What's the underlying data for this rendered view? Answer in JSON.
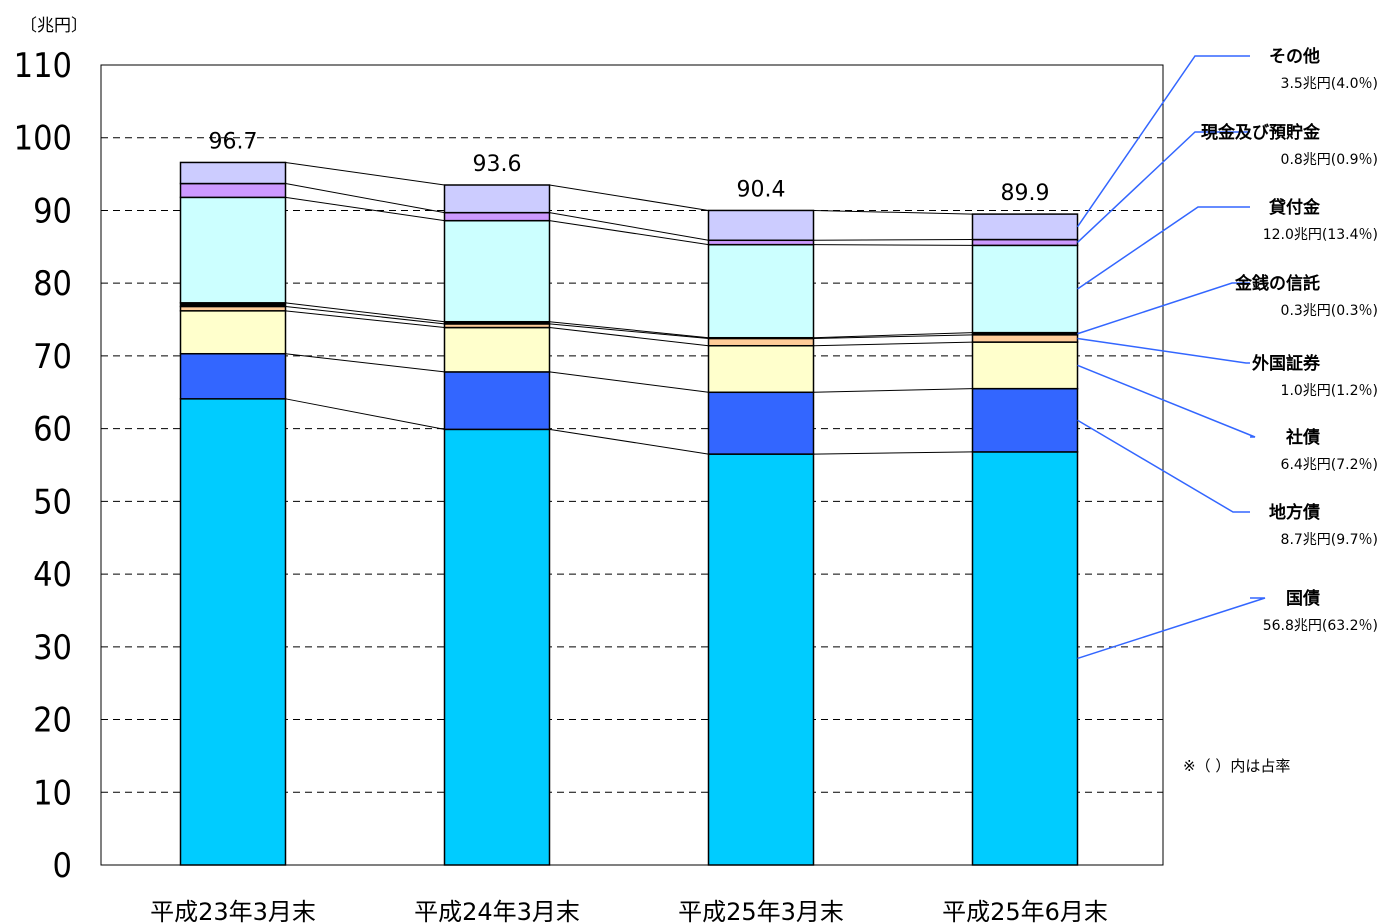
{
  "chart_data": {
    "type": "bar",
    "stacked": true,
    "unit_label": "〔兆円〕",
    "title": "",
    "xlabel": "",
    "ylabel": "",
    "ylim": [
      0,
      110
    ],
    "yticks": [
      0,
      10,
      20,
      30,
      40,
      50,
      60,
      70,
      80,
      90,
      100,
      110
    ],
    "grid": true,
    "categories": [
      "平成23年3月末",
      "平成24年3月末",
      "平成25年3月末",
      "平成25年6月末"
    ],
    "totals": [
      "96.7",
      "93.6",
      "90.4",
      "89.9"
    ],
    "series": [
      {
        "name": "国債",
        "value_label": "56.8兆円(63.2％)",
        "color": "#00ccff",
        "values": [
          64.1,
          59.9,
          56.5,
          56.8
        ]
      },
      {
        "name": "地方債",
        "value_label": "8.7兆円(9.7％)",
        "color": "#3366ff",
        "values": [
          6.2,
          7.9,
          8.5,
          8.7
        ]
      },
      {
        "name": "社債",
        "value_label": "6.4兆円(7.2％)",
        "color": "#ffffcc",
        "values": [
          5.9,
          6.1,
          6.4,
          6.4
        ]
      },
      {
        "name": "外国証券",
        "value_label": "1.0兆円(1.2％)",
        "color": "#ffcc99",
        "values": [
          0.6,
          0.5,
          1.0,
          1.0
        ]
      },
      {
        "name": "金銭の信託",
        "value_label": "0.3兆円(0.3％)",
        "color": "#000000",
        "values": [
          0.5,
          0.3,
          0.1,
          0.3
        ]
      },
      {
        "name": "貸付金",
        "value_label": "12.0兆円(13.4％)",
        "color": "#ccffff",
        "values": [
          14.5,
          13.9,
          12.8,
          12.0
        ]
      },
      {
        "name": "現金及び預貯金",
        "value_label": "0.8兆円(0.9％)",
        "color": "#cc99ff",
        "values": [
          1.9,
          1.1,
          0.6,
          0.8
        ]
      },
      {
        "name": "その他",
        "value_label": "3.5兆円(4.0％)",
        "color": "#ccccff",
        "values": [
          2.9,
          3.8,
          4.1,
          3.5
        ]
      }
    ],
    "legend_placement": "right",
    "note": "※（ ）内は占率"
  }
}
